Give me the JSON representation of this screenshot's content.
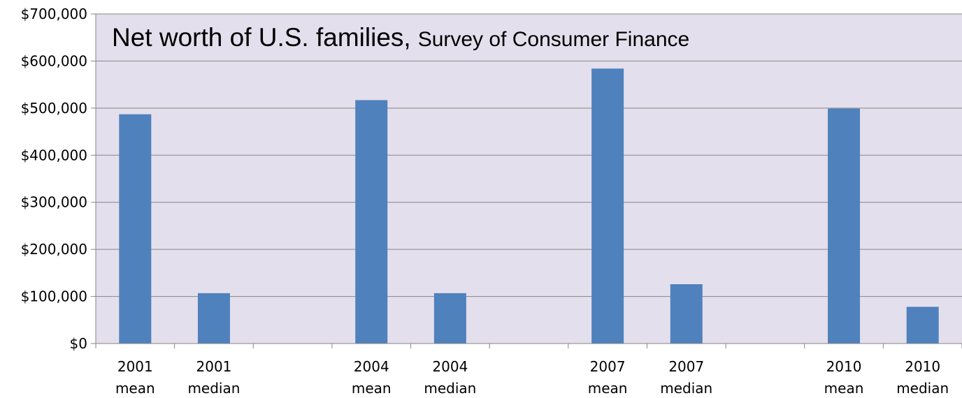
{
  "colors": {
    "plot_background": "#e4dfec",
    "bar": "#4f81bd",
    "gridline": "#868686",
    "axis": "#868686",
    "text": "#000000"
  },
  "chart_data": {
    "type": "bar",
    "title": "Net worth of U.S. families,",
    "subtitle": "Survey of Consumer Finance",
    "categories": [
      [
        "2001",
        "mean"
      ],
      [
        "2001",
        "median"
      ],
      [
        "",
        ""
      ],
      [
        "2004",
        "mean"
      ],
      [
        "2004",
        "median"
      ],
      [
        "",
        ""
      ],
      [
        "2007",
        "mean"
      ],
      [
        "2007",
        "median"
      ],
      [
        "",
        ""
      ],
      [
        "2010",
        "mean"
      ],
      [
        "2010",
        "median"
      ]
    ],
    "values": [
      487000,
      107000,
      null,
      517000,
      107000,
      null,
      584000,
      126000,
      null,
      499000,
      78000
    ],
    "xlabel": "",
    "ylabel": "",
    "ylim": [
      0,
      700000
    ],
    "yticks": [
      "$0",
      "$100,000",
      "$200,000",
      "$300,000",
      "$400,000",
      "$500,000",
      "$600,000",
      "$700,000"
    ],
    "grid": true,
    "legend": "none"
  }
}
